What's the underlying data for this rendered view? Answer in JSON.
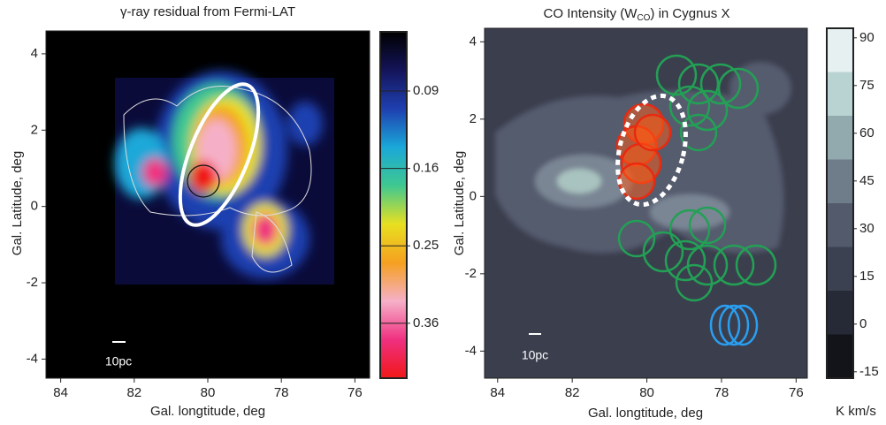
{
  "chart_data": [
    {
      "type": "image",
      "title": "γ-ray  residual from Fermi-LAT",
      "xlabel": "Gal. longtitude, deg",
      "ylabel": "Gal. Latitude,  deg",
      "xlim": [
        84.4,
        75.6
      ],
      "ylim": [
        -4.5,
        4.6
      ],
      "xticks": [
        84,
        82,
        80,
        78,
        76
      ],
      "yticks": [
        4,
        2,
        0,
        -2,
        -4
      ],
      "scale_label": "10pc",
      "colorbar": {
        "clim": [
          0.05,
          0.45
        ],
        "scale": "sqrt",
        "ticks": [
          0.09,
          0.16,
          0.25,
          0.36
        ],
        "colormap": [
          "#000000",
          "#14145a",
          "#1f3fb0",
          "#1aa8d8",
          "#3fc890",
          "#e8e020",
          "#f5a020",
          "#f5b0c8",
          "#f03080",
          "#f01818"
        ]
      }
    },
    {
      "type": "image",
      "title": "CO Intensity (W",
      "title_sub": "CO",
      "title_end": ") in Cygnus X",
      "xlabel": "Gal. longtitude, deg",
      "ylabel": "Gal. Latitude,  deg",
      "xlim": [
        84.35,
        75.7
      ],
      "ylim": [
        -4.7,
        4.35
      ],
      "xticks": [
        84,
        82,
        80,
        78,
        76
      ],
      "yticks": [
        4,
        2,
        0,
        -2,
        -4
      ],
      "scale_label": "10pc",
      "colorbar": {
        "clim": [
          93,
          -17
        ],
        "scale": "linear",
        "ticks": [
          90,
          75,
          60,
          45,
          30,
          15,
          0,
          -15
        ],
        "label": "K km/s",
        "colormap": [
          "#e6f0f0",
          "#b9d3d2",
          "#92a9ad",
          "#6f7d8a",
          "#525a6c",
          "#3c4152",
          "#262a36",
          "#121419"
        ],
        "discrete": true
      }
    }
  ]
}
